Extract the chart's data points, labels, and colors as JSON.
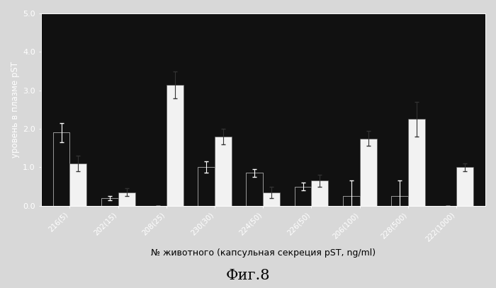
{
  "categories": [
    "216(5)",
    "202(15)",
    "208(25)",
    "230(30)",
    "224(50)",
    "226(50)",
    "206(100)",
    "228(500)",
    "222(1000)"
  ],
  "dark_bars": [
    1.9,
    0.2,
    0.0,
    1.0,
    0.85,
    0.5,
    0.25,
    0.25,
    0.0
  ],
  "light_bars": [
    1.1,
    0.35,
    3.15,
    1.8,
    0.35,
    0.65,
    1.75,
    2.25,
    1.0
  ],
  "dark_errors": [
    0.25,
    0.05,
    0.0,
    0.15,
    0.1,
    0.1,
    0.4,
    0.4,
    0.0
  ],
  "light_errors": [
    0.2,
    0.1,
    0.35,
    0.2,
    0.15,
    0.15,
    0.2,
    0.45,
    0.1
  ],
  "dark_color": "#111111",
  "light_color": "#f2f2f2",
  "ylabel": "уровень в плазме pST",
  "xlabel": "№ животного (капсульная секреция pST, ng/ml)",
  "fig_title": "Фиг.8",
  "ylim": [
    0.0,
    5.0
  ],
  "yticks": [
    0.0,
    1.0,
    2.0,
    3.0,
    4.0,
    5.0
  ],
  "axes_bg_color": "#111111",
  "fig_bg_color": "#d8d8d8",
  "bar_width": 0.35,
  "dpi": 100,
  "figsize": [
    7.0,
    4.07
  ]
}
